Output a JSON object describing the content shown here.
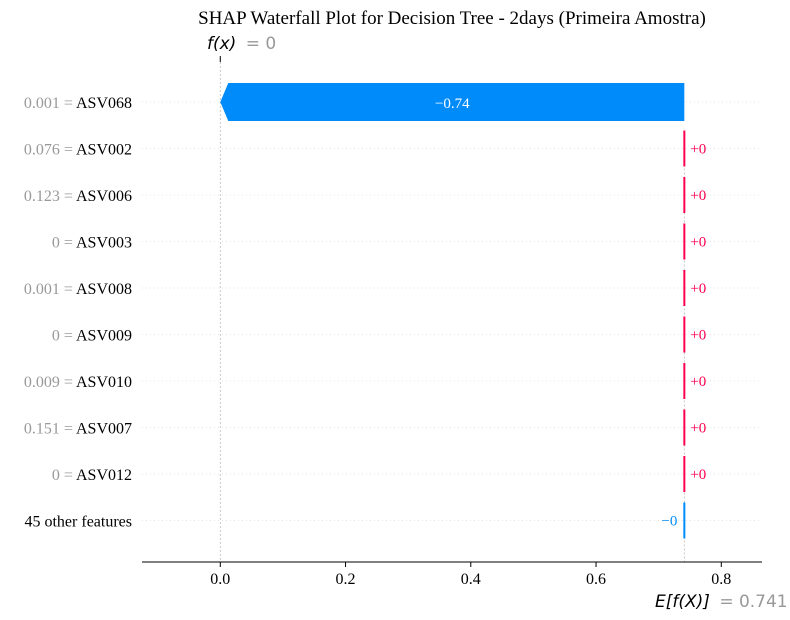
{
  "chart_data": {
    "type": "waterfall",
    "title": "SHAP Waterfall Plot for Decision Tree - 2days (Primeira Amostra)",
    "fx_label": "f(x)",
    "fx_value": "= 0",
    "fx": 0,
    "base_label": "E[f(X)]",
    "base_value_text": "= 0.741",
    "base_value": 0.741,
    "xlim": [
      -0.125,
      0.865
    ],
    "x_ticks": [
      0.0,
      0.2,
      0.4,
      0.6,
      0.8
    ],
    "x_tick_labels": [
      "0.0",
      "0.2",
      "0.4",
      "0.6",
      "0.8"
    ],
    "features": [
      {
        "value": "0.001 =",
        "name": "ASV068",
        "shap": -0.741,
        "label": "−0.74"
      },
      {
        "value": "0.076 =",
        "name": "ASV002",
        "shap": 0.0,
        "label": "+0"
      },
      {
        "value": "0.123 =",
        "name": "ASV006",
        "shap": 0.0,
        "label": "+0"
      },
      {
        "value": "0 =",
        "name": "ASV003",
        "shap": 0.0,
        "label": "+0"
      },
      {
        "value": "0.001 =",
        "name": "ASV008",
        "shap": 0.0,
        "label": "+0"
      },
      {
        "value": "0 =",
        "name": "ASV009",
        "shap": 0.0,
        "label": "+0"
      },
      {
        "value": "0.009 =",
        "name": "ASV010",
        "shap": 0.0,
        "label": "+0"
      },
      {
        "value": "0.151 =",
        "name": "ASV007",
        "shap": 0.0,
        "label": "+0"
      },
      {
        "value": "0 =",
        "name": "ASV012",
        "shap": 0.0,
        "label": "+0"
      },
      {
        "value": "",
        "name": "45 other features",
        "shap": -0.0,
        "label": "−0",
        "sign": "negative"
      }
    ],
    "colors": {
      "negative": "#008bfb",
      "positive": "#ff0051",
      "value_text": "#999999",
      "grid": "#cccccc"
    }
  }
}
